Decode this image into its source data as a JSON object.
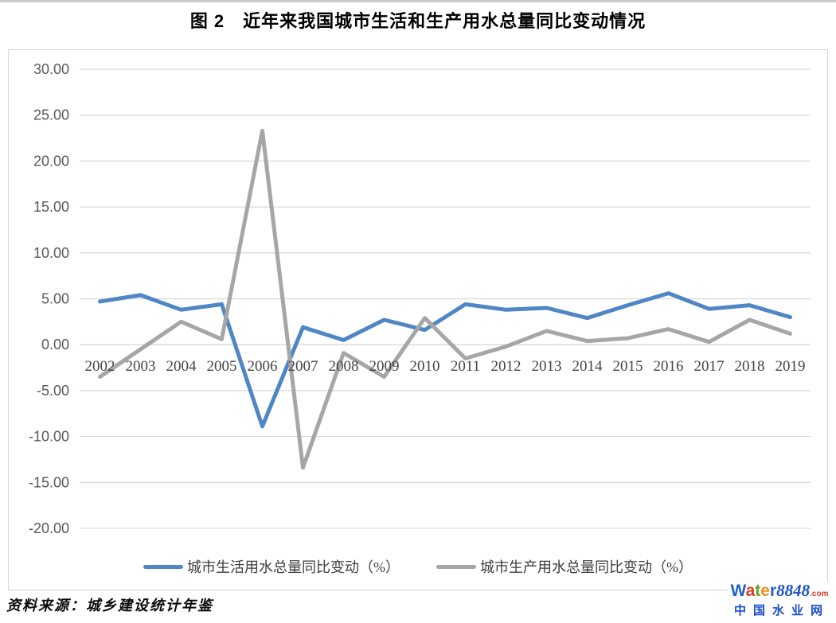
{
  "page": {
    "title": "图 2　近年来我国城市生活和生产用水总量同比变动情况",
    "source_note": "资料来源：城乡建设统计年鉴"
  },
  "chart_data": {
    "type": "line",
    "title": "图 2　近年来我国城市生活和生产用水总量同比变动情况",
    "categories": [
      "2002",
      "2003",
      "2004",
      "2005",
      "2006",
      "2007",
      "2008",
      "2009",
      "2010",
      "2011",
      "2012",
      "2013",
      "2014",
      "2015",
      "2016",
      "2017",
      "2018",
      "2019"
    ],
    "series": [
      {
        "name": "城市生活用水总量同比变动（%）",
        "color": "#4F86C6",
        "values": [
          4.7,
          5.4,
          3.8,
          4.4,
          -8.9,
          1.9,
          0.5,
          2.7,
          1.6,
          4.4,
          3.8,
          4.0,
          2.9,
          4.3,
          5.6,
          3.9,
          4.3,
          3.0
        ]
      },
      {
        "name": "城市生产用水总量同比变动（%）",
        "color": "#A6A6A6",
        "values": [
          -3.5,
          -0.5,
          2.5,
          0.6,
          23.3,
          -13.4,
          -0.9,
          -3.5,
          2.9,
          -1.5,
          -0.2,
          1.5,
          0.4,
          0.7,
          1.7,
          0.3,
          2.7,
          1.2
        ]
      }
    ],
    "xlabel": "",
    "ylabel": "",
    "ylim": [
      -20,
      30
    ],
    "ytick_step": 5,
    "ytick_labels": [
      "30.00",
      "25.00",
      "20.00",
      "15.00",
      "10.00",
      "5.00",
      "0.00",
      "-5.00",
      "-10.00",
      "-15.00",
      "-20.00"
    ],
    "grid": true,
    "legend_position": "bottom",
    "gridline_color": "#d9d9d9",
    "ytick_color": "#595959",
    "xtick_color": "#444444"
  },
  "logo": {
    "letters": [
      {
        "ch": "W",
        "color": "#1e62c8"
      },
      {
        "ch": "a",
        "color": "#e2372b"
      },
      {
        "ch": "t",
        "color": "#62a41d"
      },
      {
        "ch": "e",
        "color": "#f08c1e"
      },
      {
        "ch": "r",
        "color": "#1e62c8"
      }
    ],
    "digits": "8848",
    "digits_color": "#1a50c8",
    "tld": ".com",
    "tld_color": "#e2372b",
    "subtitle": "中国水业网",
    "subtitle_color": "#1a50c8"
  }
}
